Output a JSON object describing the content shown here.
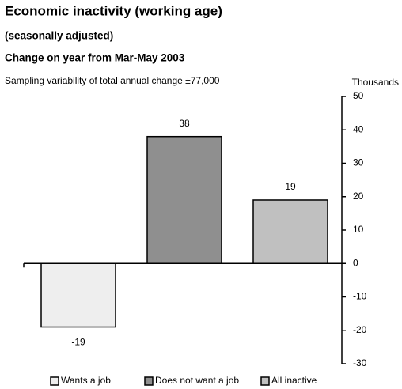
{
  "chart_data": {
    "type": "bar",
    "title": "Economic inactivity (working age)",
    "subtitle": "(seasonally adjusted)",
    "subtitle2": "Change on year from Mar-May 2003",
    "annotation": "Sampling variability of total annual change ±77,000",
    "y_label": "Thousands",
    "categories": [
      "Wants a job",
      "Does not want a job",
      "All inactive"
    ],
    "values": [
      -19,
      38,
      19
    ],
    "colors": [
      "#eeeeee",
      "#8f8f8f",
      "#c0c0c0"
    ],
    "ylim": [
      -30,
      50
    ],
    "yticks": [
      -30,
      -20,
      -10,
      0,
      10,
      20,
      30,
      40,
      50
    ],
    "legend": "bottom"
  }
}
